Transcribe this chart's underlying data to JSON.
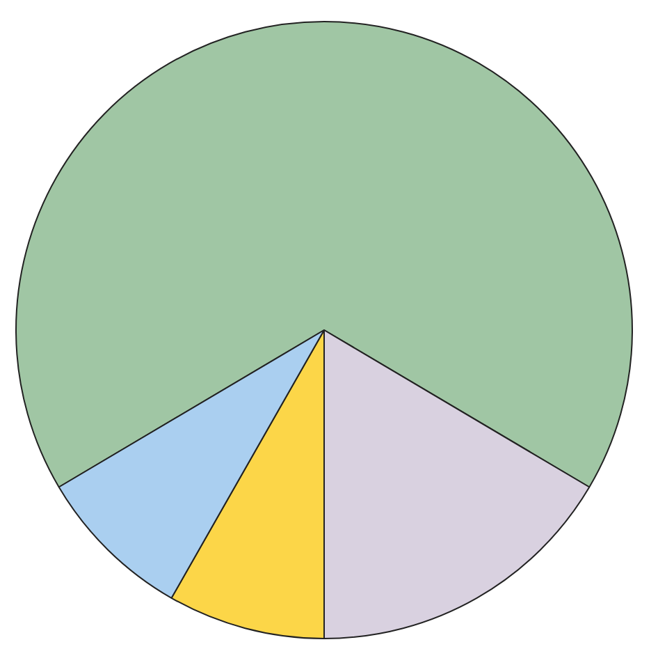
{
  "chart_data": {
    "type": "pie",
    "categories": [
      null,
      null,
      null,
      null
    ],
    "values": [
      67,
      16.5,
      8.25,
      8.25
    ],
    "colors": [
      "#a0c6a4",
      "#d9d1e0",
      "#fcd648",
      "#aacff0"
    ],
    "legend": false
  }
}
